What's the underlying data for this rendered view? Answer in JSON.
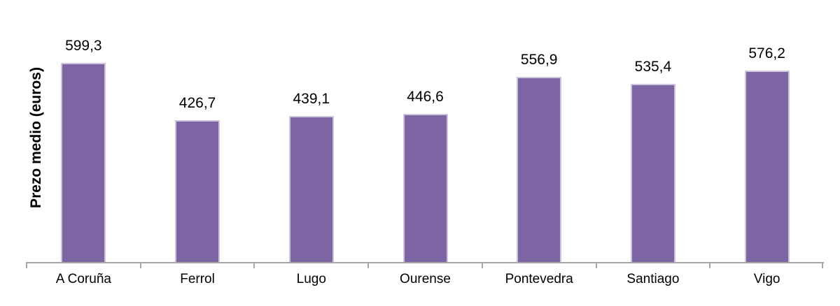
{
  "chart_data": {
    "type": "bar",
    "title": "",
    "xlabel": "",
    "ylabel": "Prezo medio (euros)",
    "categories": [
      "A Coruña",
      "Ferrol",
      "Lugo",
      "Ourense",
      "Pontevedra",
      "Santiago",
      "Vigo"
    ],
    "values": [
      599.3,
      426.7,
      439.1,
      446.6,
      556.9,
      535.4,
      576.2
    ],
    "value_labels": [
      "599,3",
      "426,7",
      "439,1",
      "446,6",
      "556,9",
      "535,4",
      "576,2"
    ],
    "ylim": [
      0,
      700
    ],
    "grid": false,
    "legend": "none",
    "colors": {
      "bar_fill": "#7D65A4",
      "bar_border": "#CCC4DD",
      "axis_line": "#A6A6A6",
      "label_text": "#000000"
    }
  }
}
